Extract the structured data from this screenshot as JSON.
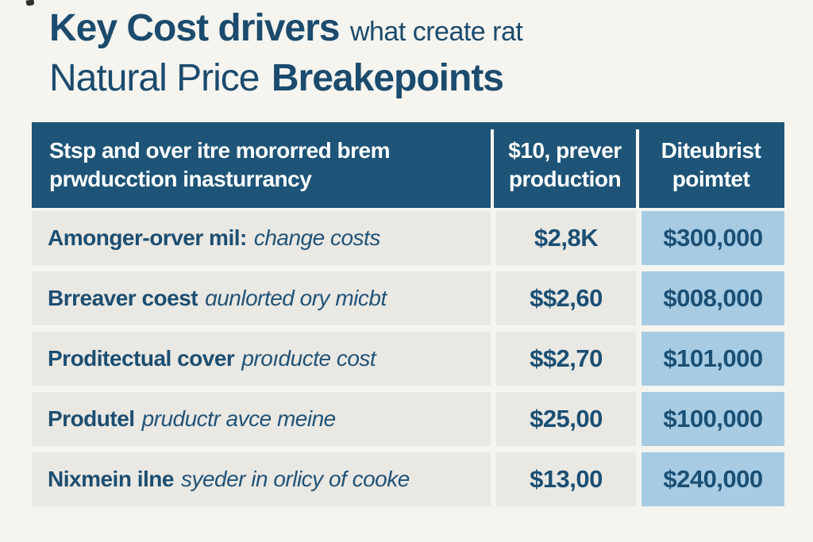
{
  "page": {
    "background": "#f5f4ef"
  },
  "title": {
    "line1_bold": "Key Cost drivers",
    "line1_regular": "what create rat",
    "line2_regular": "Natural Price",
    "line2_bold": "Breakepoints",
    "text_color": "#1b4b6d"
  },
  "table": {
    "header_bg": "#1d5477",
    "header_text_color": "#ffffff",
    "row_bg": "#e9e8e3",
    "highlight_bg": "#a6cbe3",
    "label_text_color": "#1c4e71",
    "value_text_color": "#1b4f74",
    "columns": [
      {
        "label": "Stsp and over itre mororred brem\nprwducction inasturrancy"
      },
      {
        "label": "$10, prever\nproduction"
      },
      {
        "label": "Diteubrist\npoimtet"
      }
    ],
    "rows": [
      {
        "label_bold": "Amonger-orver mil:",
        "label_italic": "change costs",
        "value1": "$2,8K",
        "value2": "$300,000"
      },
      {
        "label_bold": "Brreaver coest",
        "label_italic": "ɑunlorted ory micbt",
        "value1": "$$2,60",
        "value2": "$008,000"
      },
      {
        "label_bold": "Proditectual cover",
        "label_italic": "proıducte cost",
        "value1": "$$2,70",
        "value2": "$101,000"
      },
      {
        "label_bold": "Produtel",
        "label_italic": "pruductr avce meine",
        "value1": "$25,00",
        "value2": "$100,000"
      },
      {
        "label_bold": "Nixmein ilne",
        "label_italic": "syeder in orlicy of cooke",
        "value1": "$13,00",
        "value2": "$240,000"
      }
    ]
  },
  "chart_data": {
    "type": "table",
    "title": "Key Cost drivers what create rat Natural Price Breakepoints",
    "columns": [
      "Stsp and over itre mororred brem prwducction inasturrancy",
      "$10, prever production",
      "Diteubrist poimtet"
    ],
    "rows": [
      [
        "Amonger-orver mil: change costs",
        "$2,8K",
        "$300,000"
      ],
      [
        "Brreaver coest ɑunlorted ory micbt",
        "$$2,60",
        "$008,000"
      ],
      [
        "Proditectual cover proıducte cost",
        "$$2,70",
        "$101,000"
      ],
      [
        "Produtel pruductr avce meine",
        "$25,00",
        "$100,000"
      ],
      [
        "Nixmein ilne syeder in orlicy of cooke",
        "$13,00",
        "$240,000"
      ]
    ],
    "legend_position": "none",
    "grid": false
  }
}
